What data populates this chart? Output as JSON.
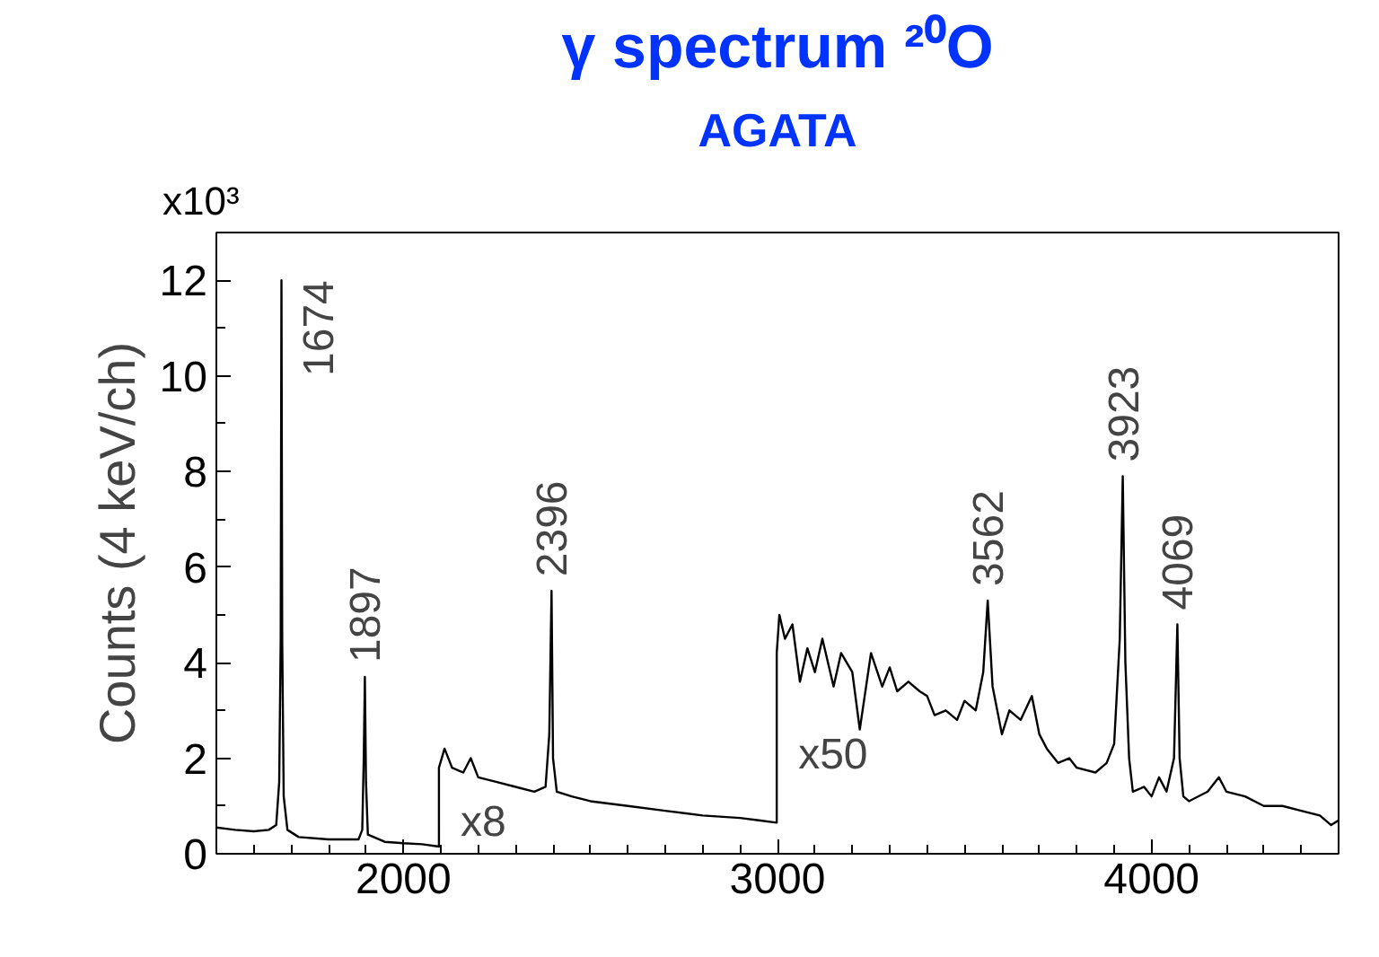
{
  "chart_data": {
    "type": "line",
    "title": "γ spectrum ²⁰O",
    "subtitle": "AGATA",
    "ylabel": "Counts (4 keV/ch)",
    "xlim": [
      1500,
      4500
    ],
    "xticks": [
      2000,
      3000,
      4000
    ],
    "ylim": [
      0,
      13
    ],
    "yticks": [
      0,
      2,
      4,
      6,
      8,
      10,
      12
    ],
    "grid": false,
    "series": [
      {
        "color": "#000000",
        "x": [
          1500,
          1550,
          1600,
          1640,
          1660,
          1668,
          1672,
          1674,
          1676,
          1680,
          1690,
          1720,
          1800,
          1880,
          1890,
          1894,
          1897,
          1900,
          1905,
          1950,
          2000,
          2050,
          2095,
          2095,
          2110,
          2130,
          2160,
          2180,
          2200,
          2250,
          2300,
          2350,
          2380,
          2390,
          2396,
          2400,
          2410,
          2450,
          2500,
          2600,
          2700,
          2800,
          2900,
          2950,
          2998,
          2998,
          3005,
          3020,
          3040,
          3060,
          3080,
          3100,
          3120,
          3150,
          3170,
          3200,
          3220,
          3250,
          3280,
          3300,
          3320,
          3350,
          3380,
          3400,
          3420,
          3450,
          3480,
          3500,
          3530,
          3550,
          3562,
          3575,
          3590,
          3600,
          3620,
          3650,
          3680,
          3700,
          3720,
          3750,
          3780,
          3800,
          3850,
          3880,
          3900,
          3915,
          3923,
          3930,
          3940,
          3950,
          3980,
          4000,
          4020,
          4040,
          4060,
          4069,
          4075,
          4085,
          4100,
          4150,
          4180,
          4200,
          4250,
          4300,
          4350,
          4400,
          4450,
          4480,
          4500
        ],
        "values": [
          0.55,
          0.5,
          0.47,
          0.5,
          0.6,
          1.5,
          4.5,
          12.0,
          4.5,
          1.2,
          0.5,
          0.35,
          0.3,
          0.3,
          0.5,
          2.0,
          3.7,
          1.5,
          0.4,
          0.25,
          0.22,
          0.2,
          0.15,
          1.8,
          2.2,
          1.8,
          1.7,
          2.0,
          1.6,
          1.5,
          1.4,
          1.3,
          1.4,
          2.5,
          5.5,
          2.0,
          1.3,
          1.2,
          1.1,
          1.0,
          0.9,
          0.8,
          0.75,
          0.7,
          0.65,
          4.2,
          5.0,
          4.5,
          4.8,
          3.6,
          4.3,
          3.8,
          4.5,
          3.5,
          4.2,
          3.8,
          2.6,
          4.2,
          3.5,
          3.9,
          3.4,
          3.6,
          3.4,
          3.3,
          2.9,
          3.0,
          2.8,
          3.2,
          3.0,
          3.8,
          5.3,
          3.5,
          2.9,
          2.5,
          3.0,
          2.8,
          3.3,
          2.5,
          2.2,
          1.9,
          2.0,
          1.8,
          1.7,
          1.9,
          2.3,
          4.5,
          7.9,
          4.0,
          2.0,
          1.3,
          1.4,
          1.2,
          1.6,
          1.3,
          2.0,
          4.8,
          2.0,
          1.2,
          1.1,
          1.3,
          1.6,
          1.3,
          1.2,
          1.0,
          1.0,
          0.9,
          0.8,
          0.6,
          0.7
        ]
      }
    ],
    "annotations": [
      "x10³",
      {
        "text": "1674",
        "x": 1674,
        "y": 12.0
      },
      {
        "text": "1897",
        "x": 1897,
        "y": 3.7
      },
      {
        "text": "2396",
        "x": 2396,
        "y": 5.5
      },
      {
        "text": "3562",
        "x": 3562,
        "y": 5.3
      },
      {
        "text": "3923",
        "x": 3923,
        "y": 7.9
      },
      {
        "text": "4069",
        "x": 4069,
        "y": 4.8
      },
      {
        "text": "x8",
        "x": 2095,
        "y": 0.15
      },
      {
        "text": "x50",
        "x": 2998,
        "y": 0.65
      }
    ]
  }
}
